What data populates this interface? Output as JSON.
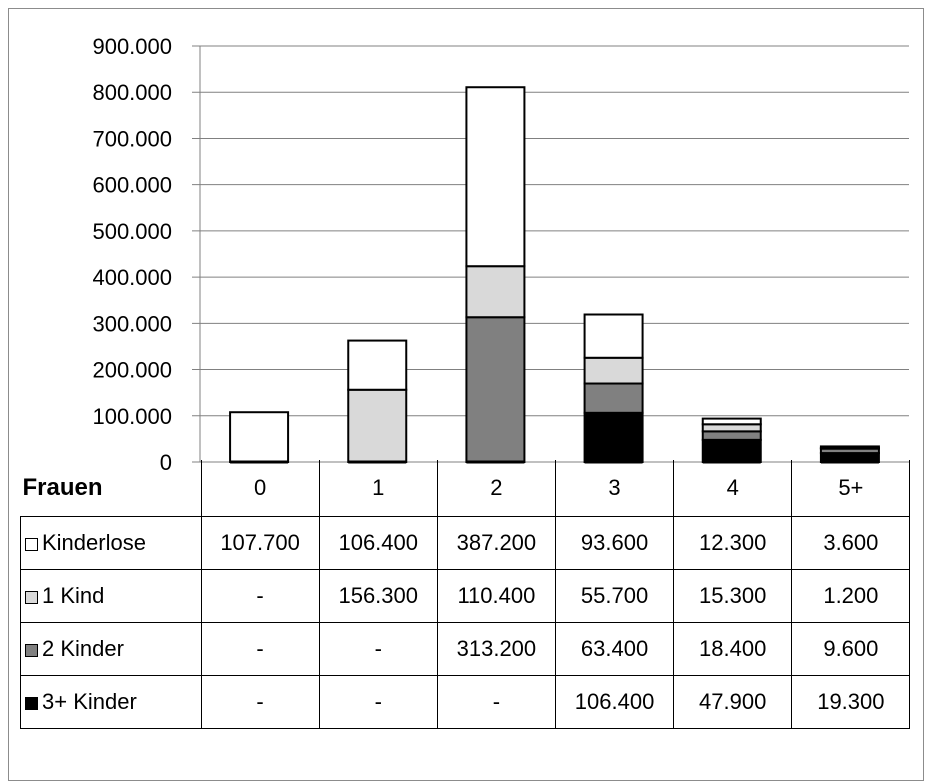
{
  "chart_data": {
    "type": "bar",
    "stacked": true,
    "table_corner_label": "Frauen",
    "categories": [
      "0",
      "1",
      "2",
      "3",
      "4",
      "5+"
    ],
    "ylim": [
      0,
      900000
    ],
    "y_ticks": [
      "0",
      "100.000",
      "200.000",
      "300.000",
      "400.000",
      "500.000",
      "600.000",
      "700.000",
      "800.000",
      "900.000"
    ],
    "grid": true,
    "legend": "table-rows",
    "series": [
      {
        "name": "3+ Kinder",
        "color": "#000000",
        "values": [
          0,
          0,
          0,
          106400,
          47900,
          19300
        ],
        "labels": [
          "-",
          "-",
          "-",
          "106.400",
          "47.900",
          "19.300"
        ]
      },
      {
        "name": "2 Kinder",
        "color": "#808080",
        "values": [
          0,
          0,
          313200,
          63400,
          18400,
          9600
        ],
        "labels": [
          "-",
          "-",
          "313.200",
          "63.400",
          "18.400",
          "9.600"
        ]
      },
      {
        "name": "1 Kind",
        "color": "#d9d9d9",
        "values": [
          0,
          156300,
          110400,
          55700,
          15300,
          1200
        ],
        "labels": [
          "-",
          "156.300",
          "110.400",
          "55.700",
          "15.300",
          "1.200"
        ]
      },
      {
        "name": "Kinderlose",
        "color": "#ffffff",
        "values": [
          107700,
          106400,
          387200,
          93600,
          12300,
          3600
        ],
        "labels": [
          "107.700",
          "106.400",
          "387.200",
          "93.600",
          "12.300",
          "3.600"
        ]
      }
    ],
    "table_row_order": [
      "Kinderlose",
      "1 Kind",
      "2 Kinder",
      "3+ Kinder"
    ]
  }
}
